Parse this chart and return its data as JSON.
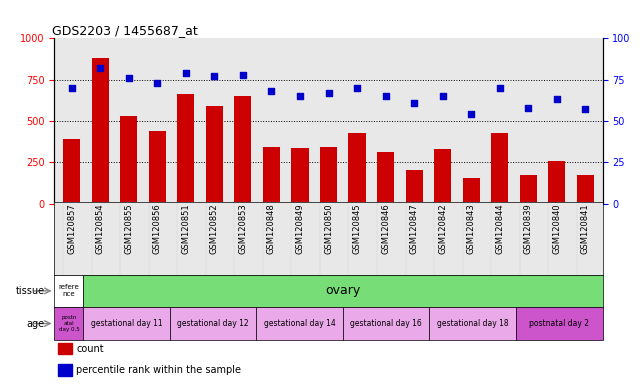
{
  "title": "GDS2203 / 1455687_at",
  "samples": [
    "GSM120857",
    "GSM120854",
    "GSM120855",
    "GSM120856",
    "GSM120851",
    "GSM120852",
    "GSM120853",
    "GSM120848",
    "GSM120849",
    "GSM120850",
    "GSM120845",
    "GSM120846",
    "GSM120847",
    "GSM120842",
    "GSM120843",
    "GSM120844",
    "GSM120839",
    "GSM120840",
    "GSM120841"
  ],
  "counts": [
    390,
    880,
    530,
    440,
    665,
    590,
    650,
    345,
    335,
    345,
    430,
    315,
    200,
    330,
    155,
    430,
    170,
    255,
    175
  ],
  "percentiles": [
    70,
    82,
    76,
    73,
    79,
    77,
    78,
    68,
    65,
    67,
    70,
    65,
    61,
    65,
    54,
    70,
    58,
    63,
    57
  ],
  "bar_color": "#cc0000",
  "dot_color": "#0000cc",
  "ylim_left": [
    0,
    1000
  ],
  "ylim_right": [
    0,
    100
  ],
  "yticks_left": [
    0,
    250,
    500,
    750,
    1000
  ],
  "yticks_right": [
    0,
    25,
    50,
    75,
    100
  ],
  "tissue_row": {
    "first_label": "refere\nnce",
    "first_color": "#ffffff",
    "second_label": "ovary",
    "second_color": "#77dd77",
    "row_label": "tissue"
  },
  "age_row": {
    "first_label": "postn\natal\nday 0.5",
    "first_color": "#cc55cc",
    "segments": [
      {
        "label": "gestational day 11",
        "color": "#eaaaea"
      },
      {
        "label": "gestational day 12",
        "color": "#eaaaea"
      },
      {
        "label": "gestational day 14",
        "color": "#eaaaea"
      },
      {
        "label": "gestational day 16",
        "color": "#eaaaea"
      },
      {
        "label": "gestational day 18",
        "color": "#eaaaea"
      },
      {
        "label": "postnatal day 2",
        "color": "#cc55cc"
      }
    ],
    "row_label": "age"
  },
  "legend_items": [
    {
      "label": "count",
      "color": "#cc0000"
    },
    {
      "label": "percentile rank within the sample",
      "color": "#0000cc"
    }
  ],
  "grid_color": "black",
  "background_color": "#e8e8e8"
}
